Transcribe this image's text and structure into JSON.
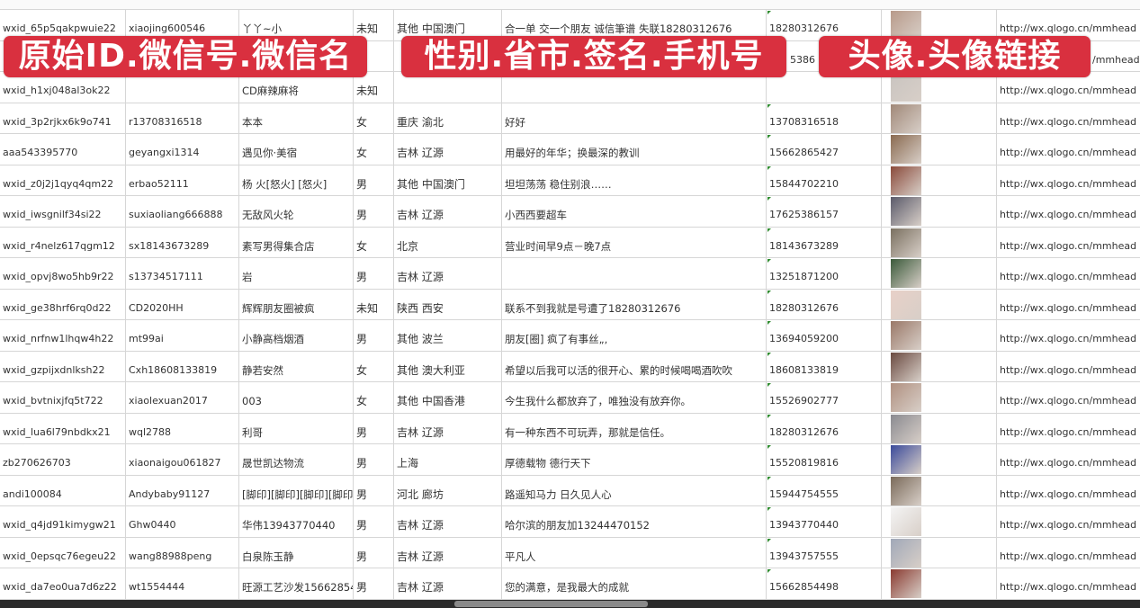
{
  "banners": [
    "原始ID.微信号.微信名",
    "性别.省市.签名.手机号",
    "头像.头像链接"
  ],
  "rows": [
    {
      "id": "wxid_65p5qakpwuie22",
      "wechat": "xiaojing600546",
      "name": "丫丫~小",
      "gender": "未知",
      "region": "其他 中国澳门",
      "signature": "合一单 交一个朋友 诚信筆谱 失联18280312676",
      "phone": "18280312676",
      "avatar_color": "#b89a8a",
      "link": "http://wx.qlogo.cn/mmhead"
    },
    {
      "id": "",
      "wechat": "",
      "name": "",
      "gender": "",
      "region": "",
      "signature": "",
      "phone": "5386",
      "avatar_color": "#6a7fa8",
      "link": "/mmhead"
    },
    {
      "id": "wxid_h1xj048al3ok22",
      "wechat": "",
      "name": "CD麻辣麻将",
      "gender": "未知",
      "region": "",
      "signature": "",
      "phone": "",
      "avatar_color": "#c9c4c0",
      "link": "http://wx.qlogo.cn/mmhead"
    },
    {
      "id": "wxid_3p2rjkx6k9o741",
      "wechat": "r13708316518",
      "name": "本本",
      "gender": "女",
      "region": "重庆 渝北",
      "signature": "好好",
      "phone": "13708316518",
      "avatar_color": "#a08878",
      "link": "http://wx.qlogo.cn/mmhead"
    },
    {
      "id": "aaa543395770",
      "wechat": "geyangxi1314",
      "name": "遇见你·美宿",
      "gender": "女",
      "region": "吉林 辽源",
      "signature": "用最好的年华；换最深的教训",
      "phone": "15662865427",
      "avatar_color": "#8a6a50",
      "link": "http://wx.qlogo.cn/mmhead"
    },
    {
      "id": "wxid_z0j2j1qyq4qm22",
      "wechat": "erbao52111",
      "name": "杨 火[怒火] [怒火]",
      "gender": "男",
      "region": "其他 中国澳门",
      "signature": "坦坦荡荡 稳住别浪……",
      "phone": "15844702210",
      "avatar_color": "#8a4a3a",
      "link": "http://wx.qlogo.cn/mmhead"
    },
    {
      "id": "wxid_iwsgnilf34si22",
      "wechat": "suxiaoliang666888",
      "name": "无敌风火轮",
      "gender": "男",
      "region": "吉林 辽源",
      "signature": "小西西要超车",
      "phone": "17625386157",
      "avatar_color": "#5a5a6a",
      "link": "http://wx.qlogo.cn/mmhead"
    },
    {
      "id": "wxid_r4nelz617qgm12",
      "wechat": "sx18143673289",
      "name": "素写男得集合店",
      "gender": "女",
      "region": "北京",
      "signature": "营业时间早9点－晚7点",
      "phone": "18143673289",
      "avatar_color": "#7a7060",
      "link": "http://wx.qlogo.cn/mmhead"
    },
    {
      "id": "wxid_opvj8wo5hb9r22",
      "wechat": "s13734517111",
      "name": "岩",
      "gender": "男",
      "region": "吉林 辽源",
      "signature": "",
      "phone": "13251871200",
      "avatar_color": "#3a5a3a",
      "link": "http://wx.qlogo.cn/mmhead"
    },
    {
      "id": "wxid_ge38hrf6rq0d22",
      "wechat": "CD2020HH",
      "name": "辉辉朋友圈被疯",
      "gender": "未知",
      "region": "陕西 西安",
      "signature": "联系不到我就是号遭了18280312676",
      "phone": "18280312676",
      "avatar_color": "#e8d0c8",
      "link": "http://wx.qlogo.cn/mmhead"
    },
    {
      "id": "wxid_nrfnw1lhqw4h22",
      "wechat": "mt99ai",
      "name": "小静高档烟酒",
      "gender": "男",
      "region": "其他 波兰",
      "signature": "朋友[圈] 疯了有事丝„,",
      "phone": "13694059200",
      "avatar_color": "#9a7868",
      "link": "http://wx.qlogo.cn/mmhead"
    },
    {
      "id": "wxid_gzpijxdnlksh22",
      "wechat": "Cxh18608133819",
      "name": "静若安然",
      "gender": "女",
      "region": "其他 澳大利亚",
      "signature": "希望以后我可以活的很开心、累的时候喝喝酒吹吹",
      "phone": "18608133819",
      "avatar_color": "#6a4a40",
      "link": "http://wx.qlogo.cn/mmhead"
    },
    {
      "id": "wxid_bvtnixjfq5t722",
      "wechat": "xiaolexuan2017",
      "name": "003",
      "gender": "女",
      "region": "其他 中国香港",
      "signature": "今生我什么都放弃了，唯独没有放弃你。",
      "phone": "15526902777",
      "avatar_color": "#b09080",
      "link": "http://wx.qlogo.cn/mmhead"
    },
    {
      "id": "wxid_lua6l79nbdkx21",
      "wechat": "wql2788",
      "name": "利哥",
      "gender": "男",
      "region": "吉林 辽源",
      "signature": "有一种东西不可玩弄，那就是信任。",
      "phone": "18280312676",
      "avatar_color": "#8a8a90",
      "link": "http://wx.qlogo.cn/mmhead"
    },
    {
      "id": "zb270626703",
      "wechat": "xiaonaigou061827",
      "name": "晟世凯达物流",
      "gender": "男",
      "region": "上海",
      "signature": "厚德载物 德行天下",
      "phone": "15520819816",
      "avatar_color": "#3a4a9a",
      "link": "http://wx.qlogo.cn/mmhead"
    },
    {
      "id": "andi100084",
      "wechat": "Andybaby91127",
      "name": "[脚印][脚印][脚印][脚印]",
      "gender": "男",
      "region": "河北 廊坊",
      "signature": "路遥知马力 日久见人心",
      "phone": "15944754555",
      "avatar_color": "#7a6a5a",
      "link": "http://wx.qlogo.cn/mmhead"
    },
    {
      "id": "wxid_q4jd91kimygw21",
      "wechat": "Ghw0440",
      "name": "华伟13943770440",
      "gender": "男",
      "region": "吉林 辽源",
      "signature": "哈尔滨的朋友加13244470152",
      "phone": "13943770440",
      "avatar_color": "#f4f4f4",
      "link": "http://wx.qlogo.cn/mmhead"
    },
    {
      "id": "wxid_0epsqc76egeu22",
      "wechat": "wang88988peng",
      "name": "白泉陈玉静",
      "gender": "男",
      "region": "吉林 辽源",
      "signature": "平凡人",
      "phone": "13943757555",
      "avatar_color": "#a0a8b8",
      "link": "http://wx.qlogo.cn/mmhead"
    },
    {
      "id": "wxid_da7eo0ua7d6z22",
      "wechat": "wt1554444",
      "name": "旺源工艺沙发15662854",
      "gender": "男",
      "region": "吉林 辽源",
      "signature": "您的满意，是我最大的成就",
      "phone": "15662854498",
      "avatar_color": "#8a3a30",
      "link": "http://wx.qlogo.cn/mmhead"
    }
  ]
}
